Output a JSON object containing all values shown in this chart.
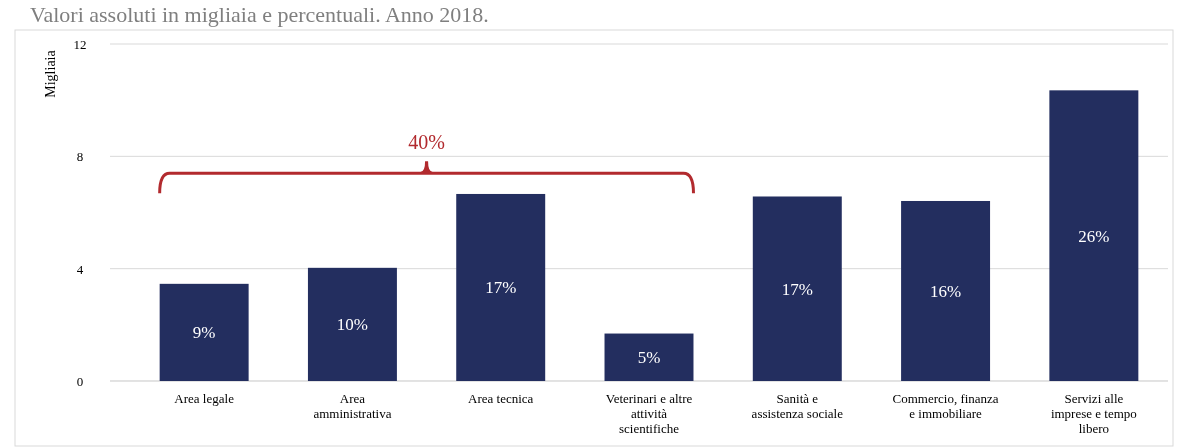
{
  "chart_data": {
    "type": "bar",
    "title": "Valori assoluti in migliaia e percentuali. Anno 2018.",
    "ylabel": "Migliaia",
    "categories": [
      "Area legale",
      "Area amministrativa",
      "Area tecnica",
      "Veterinari e altre attività scientifiche",
      "Sanità e assistenza sociale",
      "Commercio, finanza e immobiliare",
      "Servizi alle imprese e tempo libero"
    ],
    "values": [
      3.46,
      4.03,
      6.66,
      1.69,
      6.57,
      6.41,
      10.35
    ],
    "color": "#232e5f",
    "ylim": [
      0,
      12
    ],
    "yticks": [
      0,
      4,
      8,
      12
    ],
    "grid": "y",
    "annotations": [
      "40%",
      "9%",
      "10%",
      "17%",
      "5%",
      "17%",
      "16%",
      "26%"
    ]
  }
}
